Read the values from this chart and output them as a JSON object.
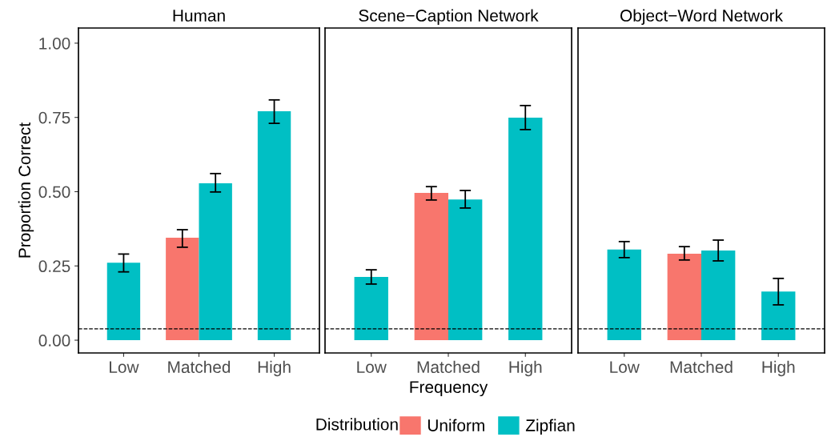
{
  "chart_data": [
    {
      "type": "bar",
      "title": "Human",
      "ylabel": "Proportion Correct",
      "categories": [
        "Low",
        "Matched",
        "High"
      ],
      "ylim": [
        -0.043,
        1.051
      ],
      "yticks": [
        {
          "value": 0,
          "label": "0.00"
        },
        {
          "value": 0.25,
          "label": "0.25"
        },
        {
          "value": 0.5,
          "label": "0.50"
        },
        {
          "value": 0.75,
          "label": "0.75"
        },
        {
          "value": 1,
          "label": "1.00"
        }
      ],
      "grid": false,
      "legend": "bottom",
      "legend_title": "Distribution",
      "series": [
        {
          "name": "Uniform",
          "color": "#f8766d",
          "values": [
            null,
            0.345,
            null
          ],
          "errors": [
            null,
            [
              0.313,
              0.372
            ],
            null
          ]
        },
        {
          "name": "Zipfian",
          "color": "#00bfc4",
          "values": [
            0.261,
            0.528,
            0.771
          ],
          "errors": [
            [
              0.23,
              0.29
            ],
            [
              0.499,
              0.561
            ],
            [
              0.73,
              0.809
            ]
          ]
        }
      ],
      "ref_lines": [
        {
          "axis": "y",
          "value": 0.038,
          "label": null,
          "color": "#000000",
          "line_style": "dashed"
        }
      ]
    },
    {
      "type": "bar",
      "title": "Scene−Caption Network",
      "xlabel": "Frequency",
      "categories": [
        "Low",
        "Matched",
        "High"
      ],
      "ylim": [
        -0.043,
        1.051
      ],
      "tick_labels": "x",
      "grid": false,
      "legend": "bottom",
      "series": [
        {
          "name": "Uniform",
          "color": "#f8766d",
          "values": [
            null,
            0.496,
            null
          ],
          "errors": [
            null,
            [
              0.472,
              0.517
            ],
            null
          ]
        },
        {
          "name": "Zipfian",
          "color": "#00bfc4",
          "values": [
            0.213,
            0.474,
            0.749
          ],
          "errors": [
            [
              0.189,
              0.237
            ],
            [
              0.445,
              0.504
            ],
            [
              0.709,
              0.79
            ]
          ]
        }
      ],
      "ref_lines": [
        {
          "axis": "y",
          "value": 0.038,
          "label": null,
          "color": "#000000",
          "line_style": "dashed"
        }
      ]
    },
    {
      "type": "bar",
      "title": "Object−Word Network",
      "categories": [
        "Low",
        "Matched",
        "High"
      ],
      "ylim": [
        -0.043,
        1.051
      ],
      "tick_labels": "x",
      "grid": false,
      "legend": "bottom",
      "series": [
        {
          "name": "Uniform",
          "color": "#f8766d",
          "values": [
            null,
            0.291,
            null
          ],
          "errors": [
            null,
            [
              0.27,
              0.315
            ],
            null
          ]
        },
        {
          "name": "Zipfian",
          "color": "#00bfc4",
          "values": [
            0.305,
            0.302,
            0.164
          ],
          "errors": [
            [
              0.278,
              0.332
            ],
            [
              0.267,
              0.337
            ],
            [
              0.119,
              0.208
            ]
          ]
        }
      ],
      "ref_lines": [
        {
          "axis": "y",
          "value": 0.038,
          "label": null,
          "color": "#000000",
          "line_style": "dashed"
        }
      ]
    }
  ]
}
